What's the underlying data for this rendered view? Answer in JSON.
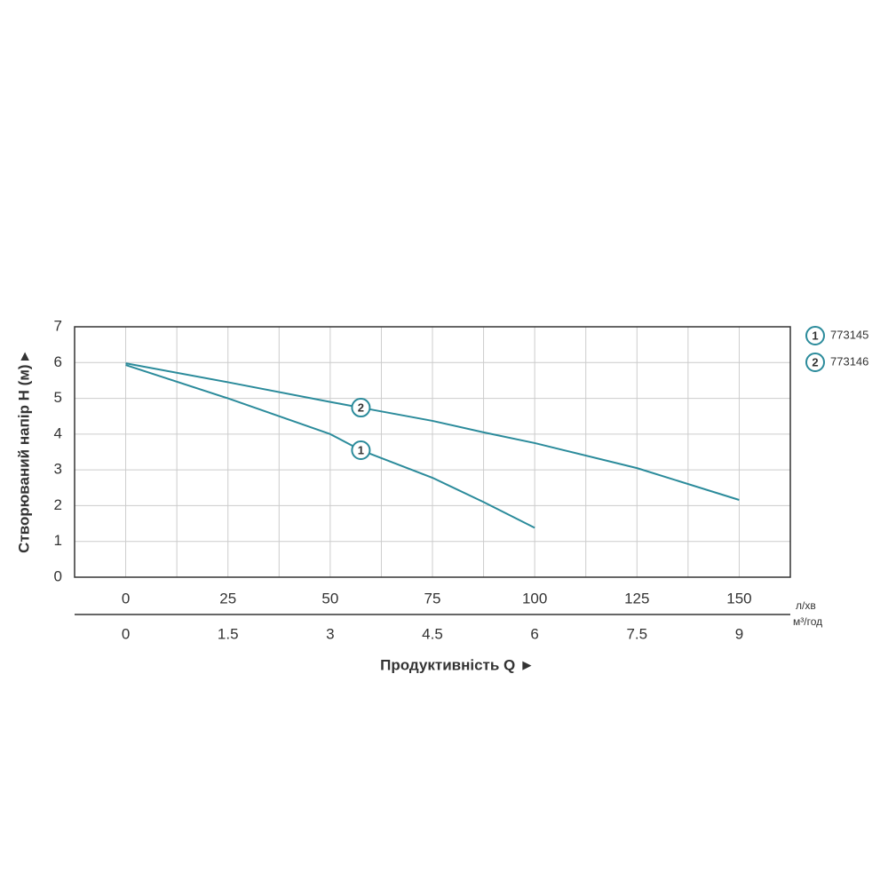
{
  "chart_data": {
    "type": "line",
    "y_title": "Створюваний напір H (м) ▸",
    "x_title": "Продуктивність  Q ►",
    "x_unit": "л/хв",
    "x2_unit": "м³/год",
    "x": [
      0,
      25,
      50,
      57.5,
      75,
      87.5,
      100,
      125,
      150
    ],
    "xlim": [
      -12.5,
      162.5
    ],
    "xticks": [
      0,
      25,
      50,
      75,
      100,
      125,
      150
    ],
    "xgrid": [
      12.5,
      37.5,
      62.5,
      87.5,
      112.5,
      137.5
    ],
    "x2lim": [
      -0.75,
      9.75
    ],
    "x2ticks": [
      0,
      1.5,
      3,
      4.5,
      6,
      7.5,
      9
    ],
    "ylim": [
      0,
      7
    ],
    "yticks": [
      0,
      1,
      2,
      3,
      4,
      5,
      6,
      7
    ],
    "grid": true,
    "series": [
      {
        "name": "773145",
        "marker": "1",
        "color": "#2b8b9b",
        "values": [
          5.93,
          5.0,
          4.0,
          3.55,
          2.78,
          2.1,
          1.38,
          null,
          null
        ]
      },
      {
        "name": "773146",
        "marker": "2",
        "color": "#2b8b9b",
        "values": [
          5.98,
          5.45,
          4.9,
          4.74,
          4.37,
          4.05,
          3.75,
          3.05,
          2.16
        ]
      }
    ]
  }
}
